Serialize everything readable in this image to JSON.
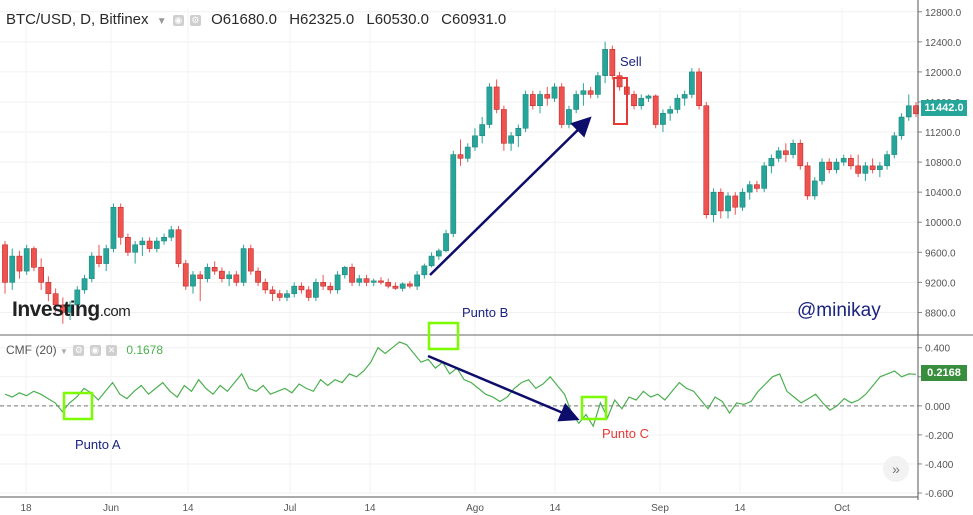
{
  "header": {
    "symbol": "BTC/USD, D, Bitfinex",
    "open": "O61680.0",
    "high": "H62325.0",
    "low": "L60530.0",
    "close": "C60931.0"
  },
  "indicator": {
    "name": "CMF (20)",
    "value": "0.1678",
    "last_tag": "0.2168"
  },
  "price_tag": "11442.0",
  "branding": {
    "logo_main": "Investing",
    "logo_suffix": ".com",
    "author": "@minikay"
  },
  "annotations": {
    "sell": "Sell",
    "punto_a": "Punto A",
    "punto_b": "Punto B",
    "punto_c": "Punto C"
  },
  "colors": {
    "up": "#26a69a",
    "down": "#ef5350",
    "cmf": "#4caf50",
    "arrow": "#0d0d6b",
    "box": "#7cfc00",
    "sell_box": "#e53935"
  },
  "chart_data": [
    {
      "type": "candlestick",
      "title": "BTC/USD, D, Bitfinex",
      "y_ticks": [
        "12800.0",
        "12400.0",
        "12000.0",
        "11600.0",
        "11200.0",
        "10800.0",
        "10400.0",
        "10000.0",
        "9600.0",
        "9200.0",
        "8800.0"
      ],
      "ylim": [
        8500,
        12850
      ],
      "x_ticks": [
        "18",
        "Jun",
        "14",
        "Jul",
        "14",
        "Ago",
        "14",
        "Sep",
        "14",
        "Oct"
      ],
      "candles_ohlc": [
        [
          9700,
          9750,
          9050,
          9200
        ],
        [
          9200,
          9650,
          9100,
          9550
        ],
        [
          9550,
          9620,
          9250,
          9350
        ],
        [
          9350,
          9700,
          9300,
          9650
        ],
        [
          9650,
          9680,
          9350,
          9400
        ],
        [
          9400,
          9520,
          9100,
          9200
        ],
        [
          9200,
          9280,
          8950,
          9050
        ],
        [
          9050,
          9120,
          8800,
          8900
        ],
        [
          8900,
          9000,
          8650,
          8800
        ],
        [
          8800,
          8950,
          8700,
          8900
        ],
        [
          8900,
          9150,
          8850,
          9100
        ],
        [
          9100,
          9300,
          9050,
          9250
        ],
        [
          9250,
          9600,
          9200,
          9550
        ],
        [
          9550,
          9700,
          9400,
          9450
        ],
        [
          9450,
          9700,
          9350,
          9650
        ],
        [
          9650,
          10250,
          9600,
          10200
        ],
        [
          10200,
          10250,
          9700,
          9800
        ],
        [
          9800,
          9850,
          9550,
          9600
        ],
        [
          9600,
          9750,
          9450,
          9700
        ],
        [
          9700,
          9800,
          9550,
          9750
        ],
        [
          9750,
          9800,
          9600,
          9650
        ],
        [
          9650,
          9800,
          9600,
          9750
        ],
        [
          9750,
          9850,
          9700,
          9800
        ],
        [
          9800,
          9950,
          9750,
          9900
        ],
        [
          9900,
          9950,
          9400,
          9450
        ],
        [
          9450,
          9500,
          9100,
          9150
        ],
        [
          9150,
          9350,
          9050,
          9300
        ],
        [
          9300,
          9350,
          8950,
          9250
        ],
        [
          9250,
          9450,
          9200,
          9400
        ],
        [
          9400,
          9480,
          9300,
          9350
        ],
        [
          9350,
          9400,
          9200,
          9250
        ],
        [
          9250,
          9350,
          9150,
          9300
        ],
        [
          9300,
          9350,
          9150,
          9200
        ],
        [
          9200,
          9700,
          9150,
          9650
        ],
        [
          9650,
          9700,
          9300,
          9350
        ],
        [
          9350,
          9400,
          9150,
          9200
        ],
        [
          9200,
          9250,
          9050,
          9100
        ],
        [
          9100,
          9150,
          8950,
          9050
        ],
        [
          9050,
          9100,
          8950,
          9000
        ],
        [
          9000,
          9100,
          8950,
          9050
        ],
        [
          9050,
          9200,
          9000,
          9150
        ],
        [
          9150,
          9200,
          9050,
          9100
        ],
        [
          9100,
          9150,
          8950,
          9000
        ],
        [
          9000,
          9250,
          8950,
          9200
        ],
        [
          9200,
          9300,
          9100,
          9150
        ],
        [
          9150,
          9200,
          9050,
          9100
        ],
        [
          9100,
          9350,
          9050,
          9300
        ],
        [
          9300,
          9420,
          9250,
          9400
        ],
        [
          9400,
          9450,
          9150,
          9200
        ],
        [
          9200,
          9300,
          9150,
          9250
        ],
        [
          9250,
          9300,
          9150,
          9200
        ],
        [
          9200,
          9250,
          9150,
          9220
        ],
        [
          9220,
          9270,
          9170,
          9200
        ],
        [
          9200,
          9250,
          9120,
          9150
        ],
        [
          9150,
          9200,
          9100,
          9120
        ],
        [
          9120,
          9200,
          9080,
          9180
        ],
        [
          9180,
          9220,
          9120,
          9150
        ],
        [
          9150,
          9350,
          9100,
          9300
        ],
        [
          9300,
          9450,
          9250,
          9420
        ],
        [
          9420,
          9600,
          9400,
          9550
        ],
        [
          9550,
          9650,
          9500,
          9620
        ],
        [
          9620,
          9900,
          9600,
          9850
        ],
        [
          9850,
          10950,
          9800,
          10900
        ],
        [
          10900,
          11100,
          10750,
          10850
        ],
        [
          10850,
          11050,
          10800,
          11000
        ],
        [
          11000,
          11250,
          10950,
          11150
        ],
        [
          11150,
          11400,
          11050,
          11300
        ],
        [
          11300,
          11850,
          11250,
          11800
        ],
        [
          11800,
          11900,
          11450,
          11500
        ],
        [
          11500,
          11550,
          10950,
          11050
        ],
        [
          11050,
          11200,
          10950,
          11150
        ],
        [
          11150,
          11300,
          11000,
          11250
        ],
        [
          11250,
          11750,
          11200,
          11700
        ],
        [
          11700,
          11750,
          11500,
          11550
        ],
        [
          11550,
          11750,
          11450,
          11700
        ],
        [
          11700,
          11800,
          11550,
          11650
        ],
        [
          11650,
          11850,
          11600,
          11800
        ],
        [
          11800,
          11850,
          11250,
          11300
        ],
        [
          11300,
          11550,
          11250,
          11500
        ],
        [
          11500,
          11750,
          11450,
          11700
        ],
        [
          11700,
          11850,
          11550,
          11750
        ],
        [
          11750,
          11800,
          11650,
          11700
        ],
        [
          11700,
          12000,
          11650,
          11950
        ],
        [
          11950,
          12400,
          11850,
          12300
        ],
        [
          12300,
          12350,
          11900,
          11950
        ],
        [
          11950,
          12000,
          11750,
          11800
        ],
        [
          11800,
          11850,
          11650,
          11700
        ],
        [
          11700,
          11750,
          11500,
          11550
        ],
        [
          11550,
          11700,
          11500,
          11650
        ],
        [
          11650,
          11700,
          11600,
          11680
        ],
        [
          11680,
          11700,
          11250,
          11300
        ],
        [
          11300,
          11500,
          11200,
          11450
        ],
        [
          11450,
          11550,
          11350,
          11500
        ],
        [
          11500,
          11700,
          11450,
          11650
        ],
        [
          11650,
          11750,
          11550,
          11700
        ],
        [
          11700,
          12050,
          11650,
          12000
        ],
        [
          12000,
          12050,
          11500,
          11550
        ],
        [
          11550,
          11600,
          10050,
          10100
        ],
        [
          10100,
          10450,
          10000,
          10400
        ],
        [
          10400,
          10450,
          10050,
          10150
        ],
        [
          10150,
          10400,
          10050,
          10350
        ],
        [
          10350,
          10400,
          10100,
          10200
        ],
        [
          10200,
          10450,
          10150,
          10400
        ],
        [
          10400,
          10550,
          10300,
          10500
        ],
        [
          10500,
          10550,
          10400,
          10450
        ],
        [
          10450,
          10800,
          10400,
          10750
        ],
        [
          10750,
          10900,
          10650,
          10850
        ],
        [
          10850,
          11000,
          10800,
          10950
        ],
        [
          10950,
          11050,
          10800,
          10900
        ],
        [
          10900,
          11100,
          10850,
          11050
        ],
        [
          11050,
          11100,
          10700,
          10750
        ],
        [
          10750,
          10800,
          10300,
          10350
        ],
        [
          10350,
          10600,
          10300,
          10550
        ],
        [
          10550,
          10850,
          10500,
          10800
        ],
        [
          10800,
          10850,
          10650,
          10700
        ],
        [
          10700,
          10850,
          10650,
          10800
        ],
        [
          10800,
          10900,
          10750,
          10850
        ],
        [
          10850,
          10900,
          10700,
          10750
        ],
        [
          10750,
          10900,
          10600,
          10650
        ],
        [
          10650,
          10800,
          10550,
          10750
        ],
        [
          10750,
          10850,
          10650,
          10700
        ],
        [
          10700,
          10800,
          10600,
          10750
        ],
        [
          10750,
          10950,
          10700,
          10900
        ],
        [
          10900,
          11200,
          10850,
          11150
        ],
        [
          11150,
          11450,
          11100,
          11400
        ],
        [
          11400,
          11700,
          11350,
          11550
        ],
        [
          11550,
          11600,
          11400,
          11442
        ]
      ]
    },
    {
      "type": "line",
      "title": "CMF (20)",
      "y_ticks": [
        "0.400",
        "0.200",
        "0.000",
        "-0.200",
        "-0.400",
        "-0.600"
      ],
      "ylim": [
        -0.6,
        0.46
      ],
      "values": [
        0.08,
        0.06,
        0.09,
        0.07,
        0.1,
        0.08,
        0.05,
        0.02,
        -0.04,
        0.02,
        0.06,
        0.12,
        0.09,
        0.04,
        0.1,
        0.16,
        0.08,
        0.05,
        0.1,
        0.14,
        0.08,
        0.12,
        0.16,
        0.1,
        0.06,
        0.14,
        0.1,
        0.18,
        0.12,
        0.08,
        0.14,
        0.1,
        0.16,
        0.22,
        0.12,
        0.1,
        0.14,
        0.08,
        0.1,
        0.12,
        0.09,
        0.15,
        0.12,
        0.1,
        0.18,
        0.14,
        0.18,
        0.16,
        0.22,
        0.2,
        0.24,
        0.3,
        0.4,
        0.36,
        0.4,
        0.44,
        0.42,
        0.36,
        0.3,
        0.32,
        0.26,
        0.3,
        0.22,
        0.26,
        0.18,
        0.16,
        0.12,
        0.08,
        0.06,
        0.03,
        0.06,
        0.12,
        0.16,
        0.18,
        0.12,
        0.15,
        0.2,
        0.14,
        0.08,
        -0.05,
        -0.12,
        -0.06,
        -0.14,
        0.02,
        -0.08,
        0.04,
        -0.02,
        0.06,
        0.04,
        0.1,
        0.06,
        0.08,
        0.04,
        0.1,
        0.16,
        0.12,
        0.1,
        0.04,
        -0.02,
        0.06,
        0.03,
        -0.05,
        0.02,
        0.01,
        0.03,
        0.1,
        0.15,
        0.2,
        0.22,
        0.1,
        0.06,
        0.02,
        0.05,
        0.08,
        0.02,
        -0.03,
        0.0,
        0.05,
        0.02,
        0.04,
        0.08,
        0.14,
        0.2,
        0.22,
        0.24,
        0.2,
        0.22,
        0.2168
      ]
    }
  ]
}
